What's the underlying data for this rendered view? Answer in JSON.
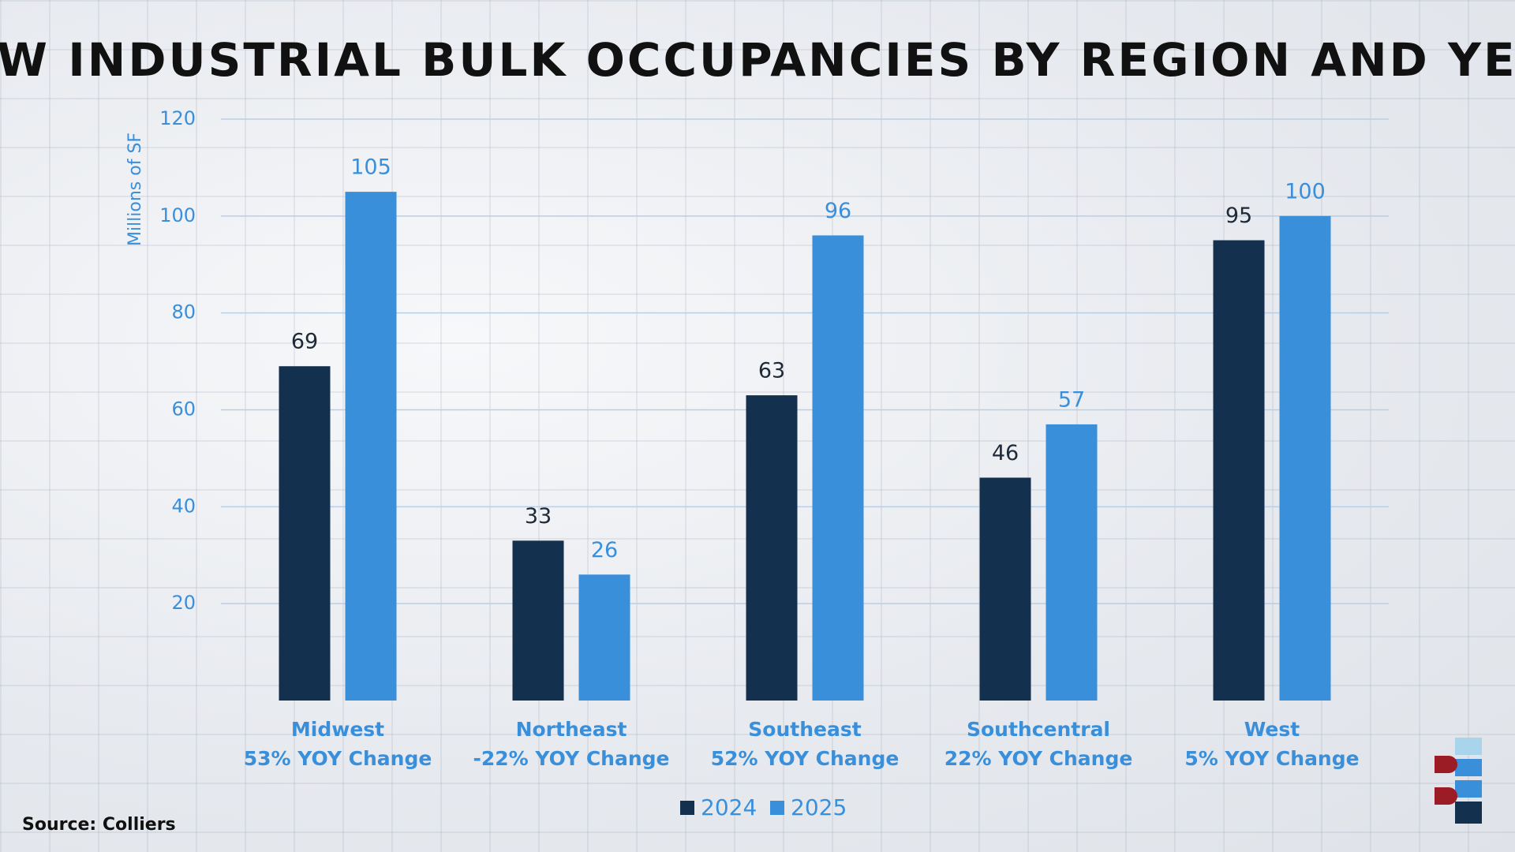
{
  "chart_data": {
    "type": "grouped-bar",
    "title": "NEW INDUSTRIAL BULK OCCUPANCIES BY REGION AND YEAR",
    "y_label": "Millions of SF",
    "source": "Source: Colliers",
    "categories": [
      "Midwest",
      "Northeast",
      "Southeast",
      "Southcentral",
      "West"
    ],
    "category_notes": [
      "53% YOY Change",
      "-22% YOY Change",
      "52% YOY Change",
      "22% YOY Change",
      "5% YOY Change"
    ],
    "series": [
      {
        "name": "2024",
        "color": "#13304f",
        "label_color": "#1e2a38",
        "values": [
          69,
          33,
          63,
          46,
          95
        ]
      },
      {
        "name": "2025",
        "color": "#3a8fdb",
        "label_color": "#3a8fdb",
        "values": [
          105,
          26,
          96,
          57,
          100
        ]
      }
    ],
    "ylim": [
      0,
      120
    ],
    "yticks": [
      20,
      40,
      60,
      80,
      100,
      120
    ],
    "grid": true,
    "legend": "bottom"
  }
}
